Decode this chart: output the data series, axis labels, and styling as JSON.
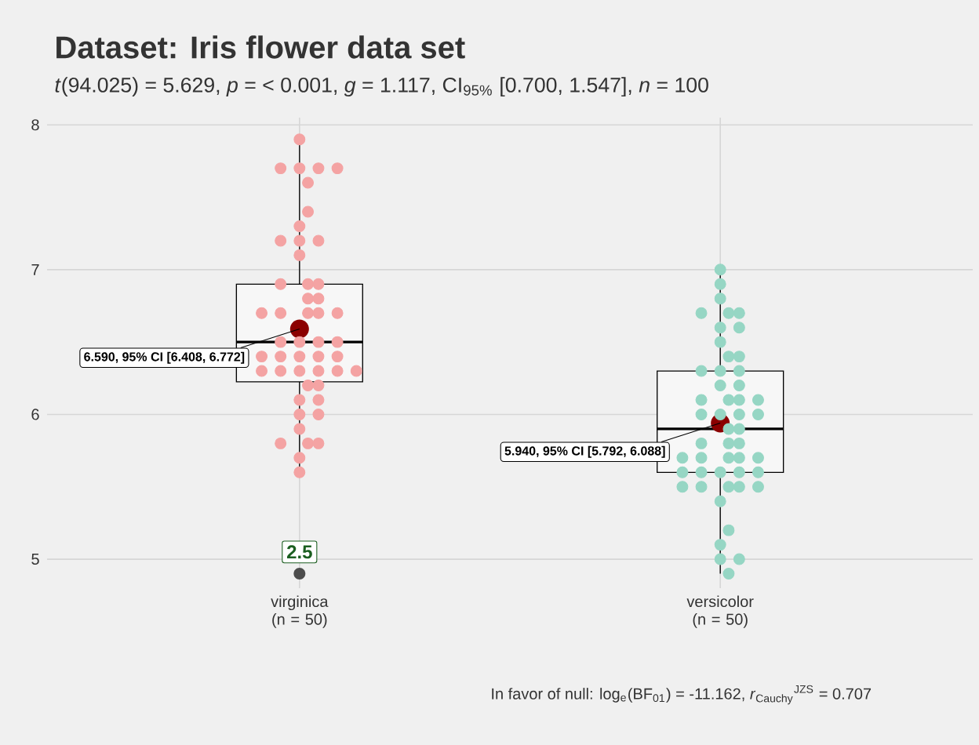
{
  "chart_data": {
    "type": "box",
    "title": "Dataset: Iris flower data set",
    "subtitle": "*t*(94.025) = 5.629, *p* = < 0.001, *g* = 1.117, CI$_{95%}$ [0.700, 1.547], *n* = 100",
    "categories": [
      "virginica (n = 50)",
      "versicolor (n = 50)"
    ],
    "boxes": [
      {
        "low": 5.6,
        "q1": 6.225,
        "median": 6.5,
        "q3": 6.9,
        "high": 7.9,
        "mean": 6.59,
        "outliers": [
          4.9
        ]
      },
      {
        "low": 4.9,
        "q1": 5.6,
        "median": 5.9,
        "q3": 6.3,
        "high": 7.0,
        "mean": 5.94
      }
    ],
    "series": [
      {
        "type": "scatter",
        "color": "#f4a3a3",
        "x": [
          "virginica (n = 50)",
          "virginica (n = 50)",
          "virginica (n = 50)",
          "virginica (n = 50)",
          "virginica (n = 50)",
          "virginica (n = 50)",
          "virginica (n = 50)",
          "virginica (n = 50)",
          "virginica (n = 50)",
          "virginica (n = 50)",
          "virginica (n = 50)",
          "virginica (n = 50)",
          "virginica (n = 50)",
          "virginica (n = 50)",
          "virginica (n = 50)",
          "virginica (n = 50)",
          "virginica (n = 50)",
          "virginica (n = 50)",
          "virginica (n = 50)",
          "virginica (n = 50)",
          "virginica (n = 50)",
          "virginica (n = 50)",
          "virginica (n = 50)",
          "virginica (n = 50)",
          "virginica (n = 50)",
          "virginica (n = 50)",
          "virginica (n = 50)",
          "virginica (n = 50)",
          "virginica (n = 50)",
          "virginica (n = 50)",
          "virginica (n = 50)",
          "virginica (n = 50)",
          "virginica (n = 50)",
          "virginica (n = 50)",
          "virginica (n = 50)",
          "virginica (n = 50)",
          "virginica (n = 50)",
          "virginica (n = 50)",
          "virginica (n = 50)",
          "virginica (n = 50)",
          "virginica (n = 50)",
          "virginica (n = 50)",
          "virginica (n = 50)",
          "virginica (n = 50)",
          "virginica (n = 50)",
          "virginica (n = 50)",
          "virginica (n = 50)",
          "virginica (n = 50)",
          "virginica (n = 50)"
        ],
        "values": [
          6.3,
          5.8,
          7.1,
          6.3,
          6.5,
          7.6,
          7.3,
          6.7,
          7.2,
          6.5,
          6.4,
          6.8,
          5.7,
          5.8,
          6.4,
          6.5,
          7.7,
          7.7,
          6.0,
          6.9,
          5.6,
          7.7,
          6.3,
          6.7,
          7.2,
          6.2,
          6.1,
          6.4,
          7.2,
          7.4,
          7.9,
          6.4,
          6.3,
          6.1,
          7.7,
          6.3,
          6.4,
          6.0,
          6.9,
          6.7,
          6.9,
          5.8,
          6.8,
          6.7,
          6.7,
          6.3,
          6.5,
          6.2,
          5.9
        ]
      },
      {
        "type": "scatter",
        "color": "#96d6c4",
        "x": [
          "versicolor (n = 50)",
          "versicolor (n = 50)",
          "versicolor (n = 50)",
          "versicolor (n = 50)",
          "versicolor (n = 50)",
          "versicolor (n = 50)",
          "versicolor (n = 50)",
          "versicolor (n = 50)",
          "versicolor (n = 50)",
          "versicolor (n = 50)",
          "versicolor (n = 50)",
          "versicolor (n = 50)",
          "versicolor (n = 50)",
          "versicolor (n = 50)",
          "versicolor (n = 50)",
          "versicolor (n = 50)",
          "versicolor (n = 50)",
          "versicolor (n = 50)",
          "versicolor (n = 50)",
          "versicolor (n = 50)",
          "versicolor (n = 50)",
          "versicolor (n = 50)",
          "versicolor (n = 50)",
          "versicolor (n = 50)",
          "versicolor (n = 50)",
          "versicolor (n = 50)",
          "versicolor (n = 50)",
          "versicolor (n = 50)",
          "versicolor (n = 50)",
          "versicolor (n = 50)",
          "versicolor (n = 50)",
          "versicolor (n = 50)",
          "versicolor (n = 50)",
          "versicolor (n = 50)",
          "versicolor (n = 50)",
          "versicolor (n = 50)",
          "versicolor (n = 50)",
          "versicolor (n = 50)",
          "versicolor (n = 50)",
          "versicolor (n = 50)",
          "versicolor (n = 50)",
          "versicolor (n = 50)",
          "versicolor (n = 50)",
          "versicolor (n = 50)",
          "versicolor (n = 50)",
          "versicolor (n = 50)",
          "versicolor (n = 50)",
          "versicolor (n = 50)",
          "versicolor (n = 50)",
          "versicolor (n = 50)"
        ],
        "values": [
          7.0,
          6.4,
          6.9,
          5.5,
          6.5,
          5.7,
          6.3,
          4.9,
          6.6,
          5.2,
          5.0,
          5.9,
          6.0,
          6.1,
          5.6,
          6.7,
          5.6,
          5.8,
          6.2,
          5.6,
          5.9,
          6.1,
          6.3,
          6.1,
          6.4,
          6.6,
          6.8,
          6.7,
          6.0,
          5.7,
          5.5,
          5.5,
          5.8,
          6.0,
          5.4,
          6.0,
          6.7,
          6.3,
          5.6,
          5.5,
          5.5,
          6.1,
          5.8,
          5.0,
          5.6,
          5.7,
          5.7,
          6.2,
          5.1,
          5.7
        ]
      }
    ],
    "ylim": [
      4.8,
      8.05
    ],
    "yticks": [
      5,
      6,
      7,
      8
    ],
    "grid": true,
    "annotations": [
      {
        "text": "6.590, 95% CI [6.408, 6.772]",
        "x": "virginica (n = 50)",
        "y": 6.59
      },
      {
        "text": "5.940, 95% CI [5.792, 6.088]",
        "x": "versicolor (n = 50)",
        "y": 5.94
      },
      "2.5",
      "In favor of null: log$_{e}$(BF$_{01}$) = -11.162, *r*$_{Cauchy}$$^{JZS}$ = 0.707"
    ]
  }
}
